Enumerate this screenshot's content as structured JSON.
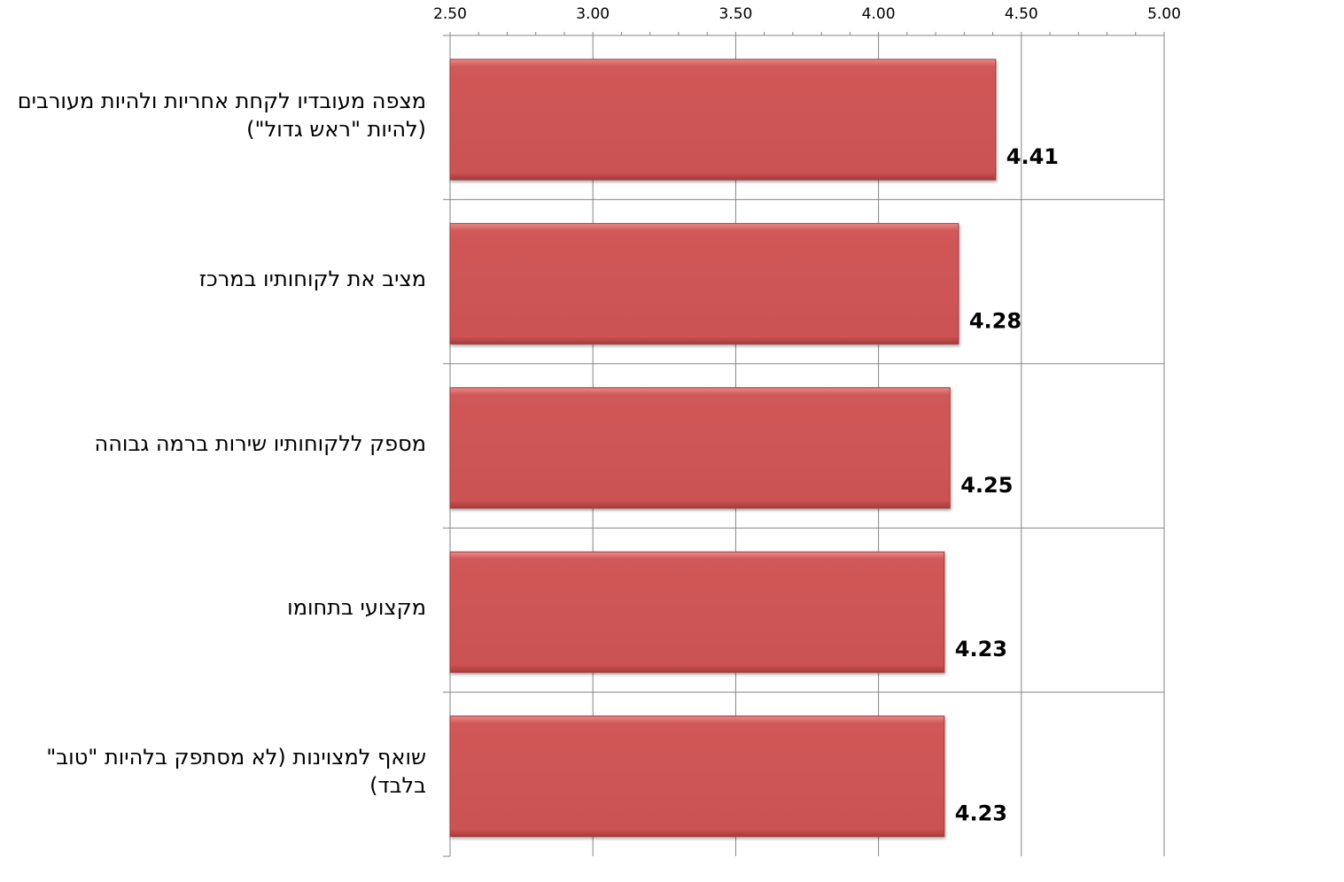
{
  "chart_data": {
    "type": "bar",
    "orientation": "horizontal",
    "title": "",
    "xlabel": "",
    "ylabel": "",
    "xlim": [
      2.5,
      5.0
    ],
    "x_ticks": [
      "2.50",
      "3.00",
      "3.50",
      "4.00",
      "4.50",
      "5.00"
    ],
    "x_tick_values": [
      2.5,
      3.0,
      3.5,
      4.0,
      4.5,
      5.0
    ],
    "x_axis_position": "top",
    "grid": true,
    "legend": "none",
    "categories": [
      "מצפה מעובדיו לקחת אחריות ולהיות מעורבים (להיות \"ראש גדול\")",
      "מציב את לקוחותיו במרכז",
      "מספק ללקוחותיו שירות ברמה גבוהה",
      "מקצועי בתחומו",
      "שואף למצוינות (לא מסתפק בלהיות \"טוב\" בלבד)"
    ],
    "values": [
      4.41,
      4.28,
      4.25,
      4.23,
      4.23
    ],
    "data_labels": [
      "4.41",
      "4.28",
      "4.25",
      "4.23",
      "4.23"
    ],
    "bar_color": "#cd5555"
  }
}
